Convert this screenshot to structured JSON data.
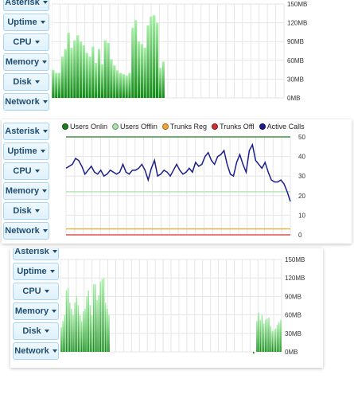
{
  "menu": {
    "asterisk": "Asterisk",
    "uptime": "Uptime",
    "cpu": "CPU",
    "memory": "Memory",
    "disk": "Disk",
    "network": "Network"
  },
  "colors": {
    "bar_top": "#a6f0a6",
    "bar_bottom": "#0d8a12",
    "users_online": "#1b7d1b",
    "users_offline": "#a8e3a8",
    "trunks_reg": "#f2a531",
    "trunks_offline": "#d32f2f",
    "active_calls": "#1b1e8c"
  },
  "icons": {
    "caret": "caret-down-icon"
  },
  "chart_data": [
    {
      "type": "bar",
      "yticks": [
        "150MB",
        "120MB",
        "90MB",
        "60MB",
        "30MB",
        "0MB"
      ],
      "ylim": [
        0,
        150
      ],
      "values": [
        45,
        40,
        40,
        66,
        78,
        104,
        80,
        92,
        100,
        90,
        84,
        72,
        66,
        82,
        56,
        78,
        54,
        92,
        88,
        62,
        52,
        44,
        40,
        38,
        36,
        40,
        112,
        124,
        90,
        86,
        80,
        116,
        130,
        132,
        120,
        48,
        58,
        null,
        null,
        null,
        null,
        null,
        null,
        null,
        null,
        null,
        null,
        null,
        null,
        null,
        null,
        null,
        null,
        null,
        null,
        null,
        null,
        null,
        null,
        null,
        null,
        null,
        null,
        null,
        null,
        null,
        null,
        null,
        null,
        null,
        null,
        null,
        null,
        null,
        null,
        null
      ]
    },
    {
      "type": "line",
      "legend": [
        "Users Onlin",
        "Users Offlin",
        "Trunks Reg",
        "Trunks Offl",
        "Active Calls"
      ],
      "yticks": [
        "50",
        "40",
        "30",
        "20",
        "10",
        "0"
      ],
      "ylim": [
        0,
        50
      ],
      "series": [
        {
          "name": "Users Onlin",
          "values": [
            50,
            50
          ]
        },
        {
          "name": "Users Offlin",
          "values": [
            22,
            22
          ]
        },
        {
          "name": "Trunks Reg",
          "values": [
            3,
            3
          ]
        },
        {
          "name": "Trunks Offl",
          "values": [
            0,
            0
          ]
        },
        {
          "name": "Active Calls",
          "values": [
            34,
            35,
            36,
            39,
            38,
            35,
            31,
            33,
            35,
            32,
            31,
            33,
            30,
            31,
            33,
            32,
            31,
            32,
            36,
            32,
            31,
            33,
            33,
            34,
            36,
            33,
            28,
            34,
            38,
            30,
            31,
            33,
            32,
            30,
            33,
            36,
            33,
            31,
            32,
            34,
            32,
            37,
            35,
            36,
            40,
            42,
            38,
            36,
            40,
            41,
            43,
            36,
            31,
            30,
            37,
            41,
            36,
            32,
            43,
            46,
            38,
            36,
            34,
            37,
            32,
            28,
            27,
            27,
            28,
            26,
            22,
            17
          ]
        }
      ]
    },
    {
      "type": "bar",
      "yticks": [
        "150MB",
        "120MB",
        "90MB",
        "60MB",
        "30MB",
        "0MB"
      ],
      "ylim": [
        0,
        150
      ],
      "values": [
        40,
        50,
        60,
        100,
        104,
        80,
        70,
        60,
        80,
        90,
        76,
        60,
        50,
        66,
        70,
        90,
        100,
        76,
        60,
        110,
        110,
        84,
        92,
        114,
        118,
        120,
        80,
        70,
        60,
        null,
        null,
        null,
        null,
        null,
        null,
        null,
        null,
        null,
        null,
        null,
        null,
        null,
        null,
        null,
        null,
        null,
        null,
        null,
        null,
        null,
        null,
        null,
        null,
        null,
        null,
        null,
        null,
        null,
        null,
        null,
        null,
        null,
        null,
        null,
        null,
        null,
        null,
        null,
        null,
        null,
        null,
        null,
        null,
        null,
        null,
        null,
        null,
        null,
        null,
        null,
        null,
        null,
        null,
        null,
        null,
        null,
        null,
        null,
        null,
        null,
        null,
        null,
        null,
        null,
        null,
        null,
        null,
        null,
        null,
        null,
        null,
        null,
        null,
        null,
        null,
        null,
        null,
        null,
        null,
        null,
        null,
        null,
        null,
        -3,
        null,
        50,
        64,
        52,
        60,
        46,
        52,
        54,
        56,
        42,
        34,
        36,
        38,
        44,
        48,
        52
      ]
    }
  ]
}
